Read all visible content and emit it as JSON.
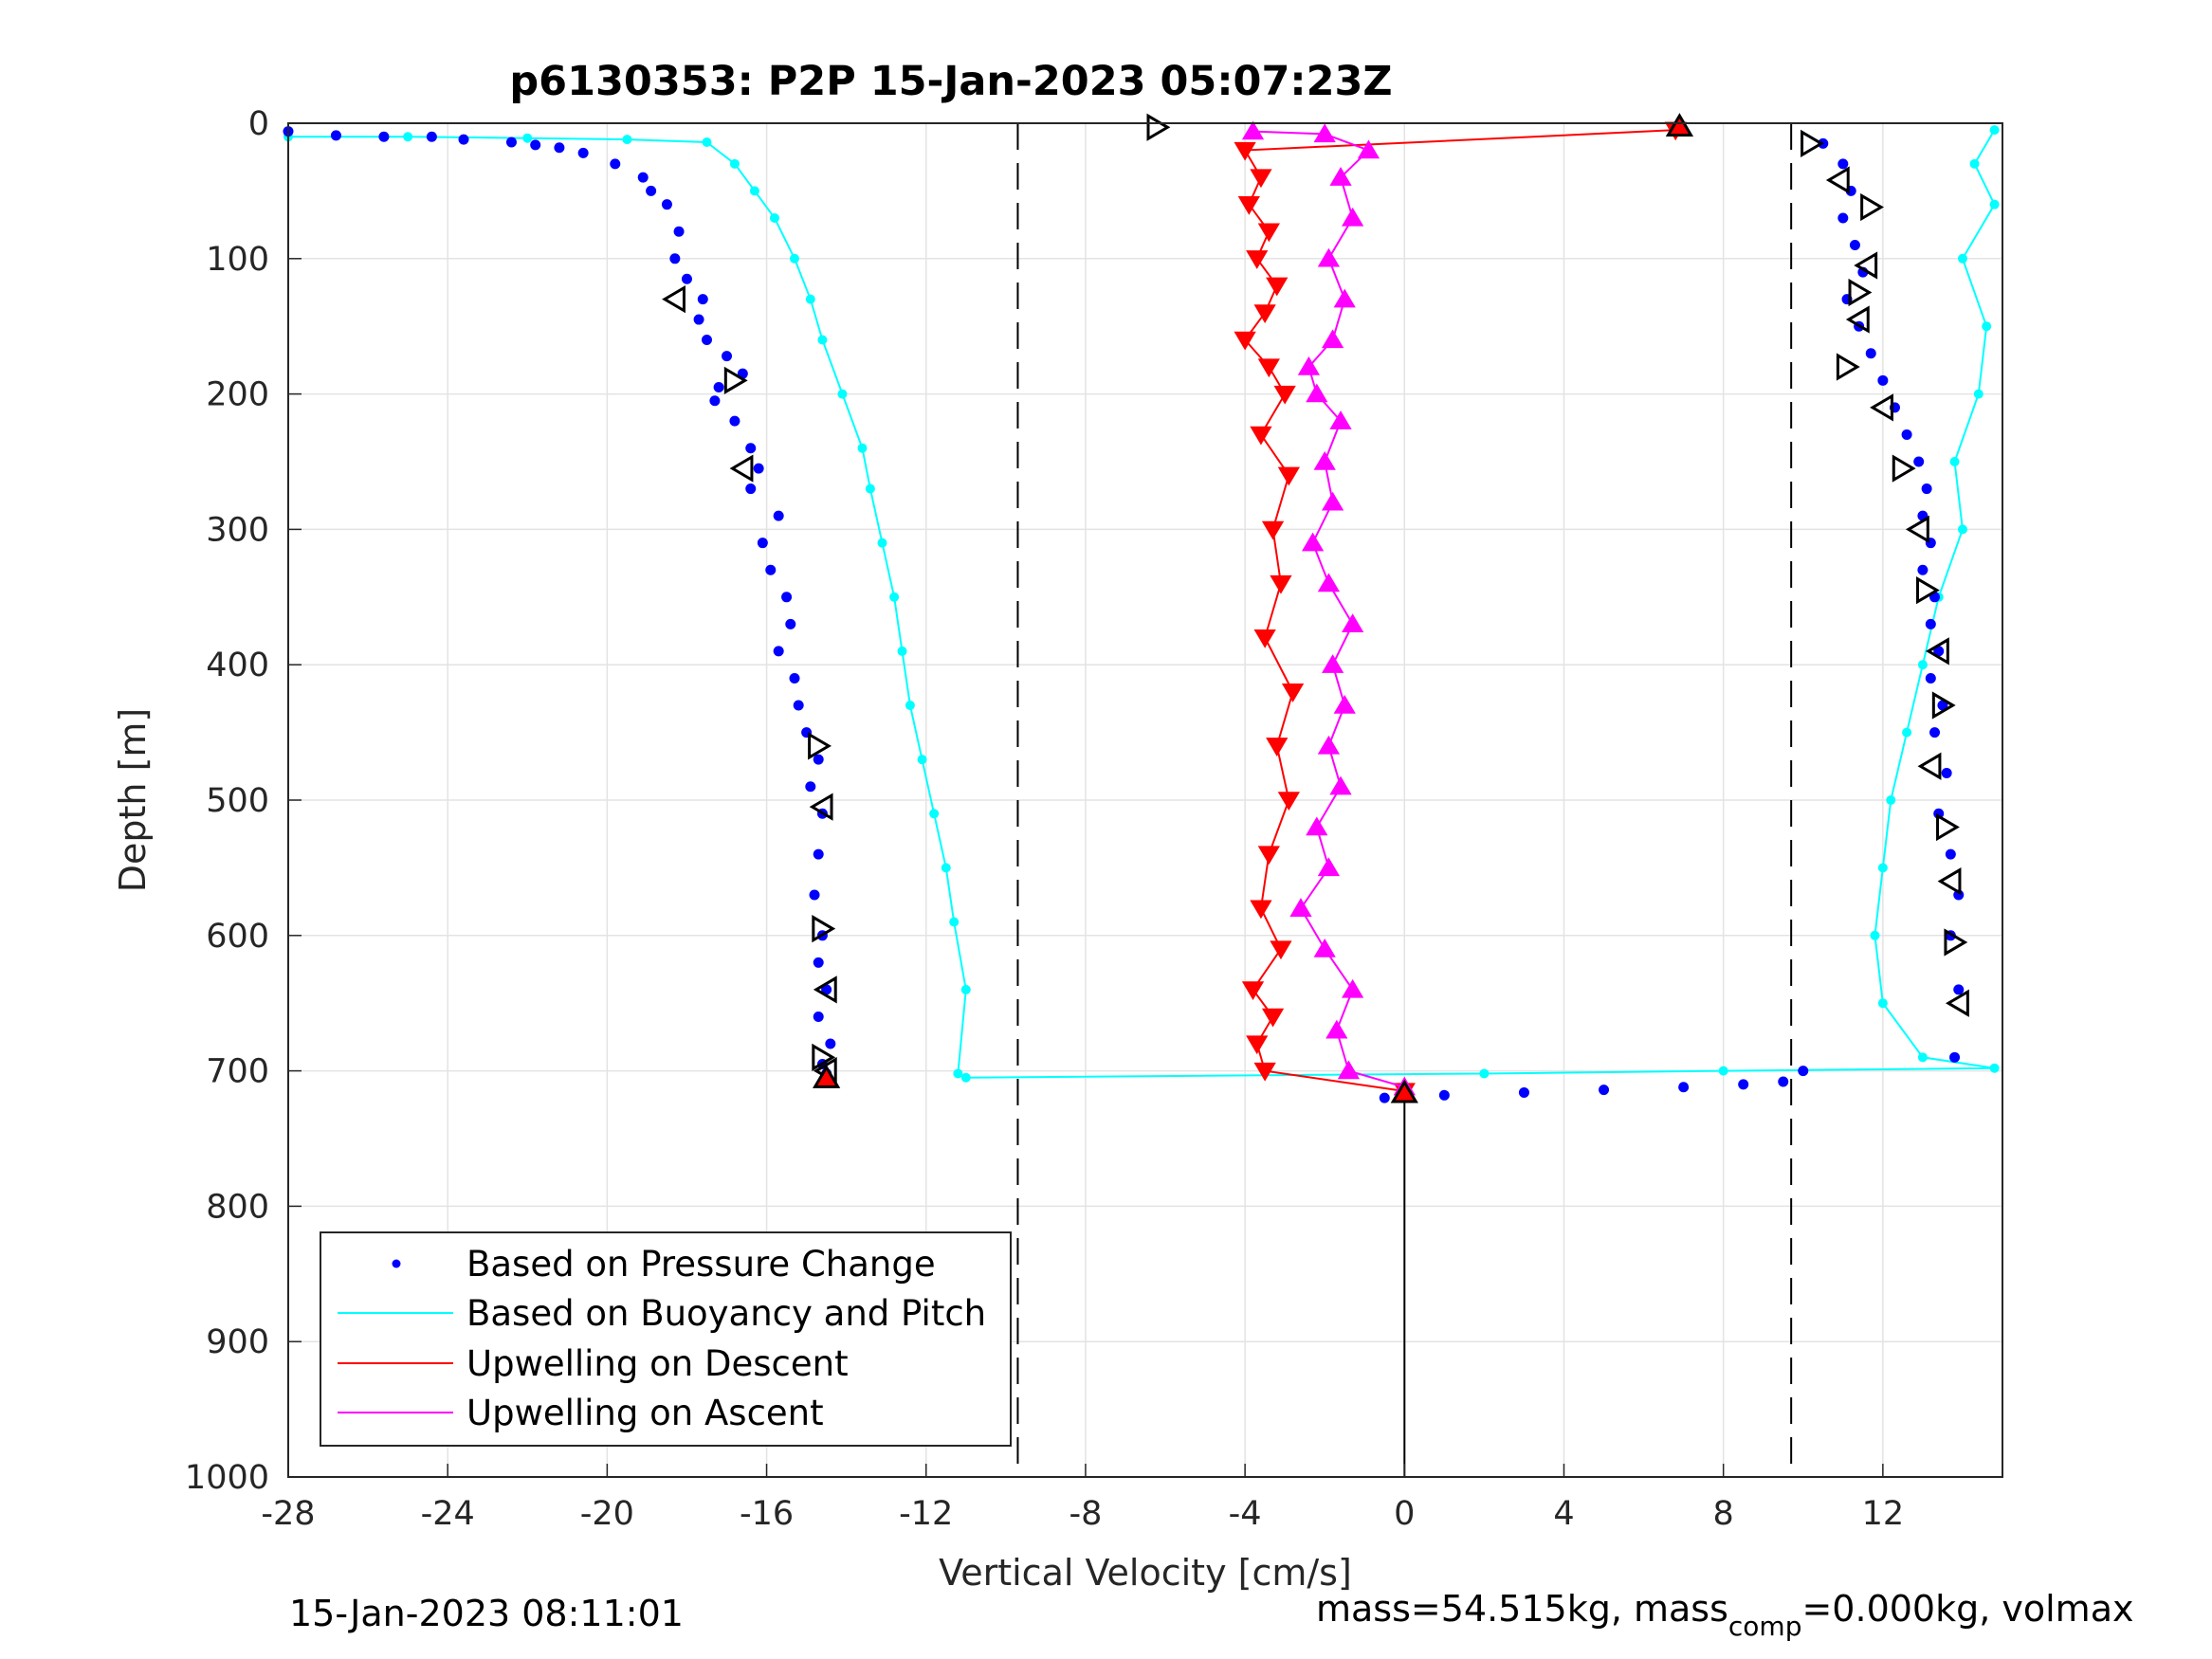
{
  "chart_data": {
    "type": "scatter",
    "title": "p6130353: P2P 15-Jan-2023 05:07:23Z",
    "xlabel": "Vertical Velocity [cm/s]",
    "ylabel": "Depth [m]",
    "xlim": [
      -28,
      15
    ],
    "ylim": [
      0,
      1000
    ],
    "y_reversed": true,
    "xticks": [
      -28,
      -24,
      -20,
      -16,
      -12,
      -8,
      -4,
      0,
      4,
      8,
      12
    ],
    "yticks": [
      0,
      100,
      200,
      300,
      400,
      500,
      600,
      700,
      800,
      900,
      1000
    ],
    "grid": true,
    "legend_position": "bottom-left",
    "reference_lines": {
      "dashed_x": [
        -9.7,
        9.7
      ],
      "solid_x_from_depth": {
        "x": 0,
        "y_from": 712,
        "y_to": 1000
      }
    },
    "series": [
      {
        "name": "Based on Pressure Change",
        "color": "#0000ff",
        "style": "dots",
        "x": [
          -28.0,
          -26.8,
          -25.6,
          -24.4,
          -23.6,
          -22.4,
          -21.8,
          -21.2,
          -20.6,
          -19.8,
          -19.1,
          -18.9,
          -18.5,
          -18.2,
          -18.3,
          -18.0,
          -17.6,
          -17.7,
          -17.5,
          -17.0,
          -16.6,
          -17.2,
          -17.3,
          -16.8,
          -16.4,
          -16.2,
          -16.4,
          -15.7,
          -16.1,
          -15.9,
          -15.5,
          -15.4,
          -15.7,
          -15.3,
          -15.2,
          -15.0,
          -14.7,
          -14.9,
          -14.6,
          -14.7,
          -14.8,
          -14.6,
          -14.7,
          -14.5,
          -14.7,
          -14.4,
          -14.6,
          -14.5
        ],
        "y": [
          6,
          9,
          10,
          10,
          12,
          14,
          16,
          18,
          22,
          30,
          40,
          50,
          60,
          80,
          100,
          115,
          130,
          145,
          160,
          172,
          185,
          195,
          205,
          220,
          240,
          255,
          270,
          290,
          310,
          330,
          350,
          370,
          390,
          410,
          430,
          450,
          470,
          490,
          510,
          540,
          570,
          600,
          620,
          640,
          660,
          680,
          695,
          702
        ],
        "x2": [
          -0.5,
          1.0,
          3.0,
          5.0,
          7.0,
          8.5,
          9.5,
          10.0,
          10.5,
          11.0,
          11.2,
          11.0,
          11.3,
          11.5,
          11.1,
          11.4,
          11.7,
          12.0,
          12.3,
          12.6,
          12.9,
          13.1,
          13.0,
          13.2,
          13.0,
          13.3,
          13.2,
          13.4,
          13.2,
          13.5,
          13.3,
          13.6,
          13.4,
          13.7,
          13.9,
          13.7,
          13.9,
          13.8
        ],
        "y2": [
          720,
          718,
          716,
          714,
          712,
          710,
          708,
          700,
          15,
          30,
          50,
          70,
          90,
          110,
          130,
          150,
          170,
          190,
          210,
          230,
          250,
          270,
          290,
          310,
          330,
          350,
          370,
          390,
          410,
          430,
          450,
          480,
          510,
          540,
          570,
          600,
          640,
          690
        ]
      },
      {
        "name": "Based on Buoyancy and Pitch",
        "color": "#00ffff",
        "style": "line+dots",
        "x": [
          -28.0,
          -25.0,
          -22.0,
          -19.5,
          -17.5,
          -16.8,
          -16.3,
          -15.8,
          -15.3,
          -14.9,
          -14.6,
          -14.1,
          -13.6,
          -13.4,
          -13.1,
          -12.8,
          -12.6,
          -12.4,
          -12.1,
          -11.8,
          -11.5,
          -11.3,
          -11.0,
          -11.2
        ],
        "y": [
          10,
          10,
          11,
          12,
          14,
          30,
          50,
          70,
          100,
          130,
          160,
          200,
          240,
          270,
          310,
          350,
          390,
          430,
          470,
          510,
          550,
          590,
          640,
          702
        ],
        "x2": [
          -11.0,
          2.0,
          8.0,
          14.8,
          13.0,
          12.0,
          11.8,
          12.0,
          12.2,
          12.6,
          13.0,
          13.4,
          14.0,
          13.8,
          14.4,
          14.6,
          14.0,
          14.8,
          14.3,
          14.8
        ],
        "y2": [
          705,
          702,
          700,
          698,
          690,
          650,
          600,
          550,
          500,
          450,
          400,
          350,
          300,
          250,
          200,
          150,
          100,
          60,
          30,
          5
        ]
      },
      {
        "name": "Upwelling on Descent",
        "color": "#ff0000",
        "style": "line+down-triangles",
        "x": [
          6.8,
          -4.0,
          -3.6,
          -3.9,
          -3.4,
          -3.7,
          -3.2,
          -3.5,
          -4.0,
          -3.4,
          -3.0,
          -3.6,
          -2.9,
          -3.3,
          -3.1,
          -3.5,
          -2.8,
          -3.2,
          -2.9,
          -3.4,
          -3.6,
          -3.1,
          -3.8,
          -3.3,
          -3.7,
          -3.5,
          0
        ],
        "y": [
          5,
          20,
          40,
          60,
          80,
          100,
          120,
          140,
          160,
          180,
          200,
          230,
          260,
          300,
          340,
          380,
          420,
          460,
          500,
          540,
          580,
          610,
          640,
          660,
          680,
          700,
          715
        ]
      },
      {
        "name": "Upwelling on Ascent",
        "color": "#ff00ff",
        "style": "line+up-triangles",
        "x": [
          0.0,
          -1.4,
          -1.7,
          -1.3,
          -2.0,
          -2.6,
          -1.9,
          -2.2,
          -1.6,
          -1.9,
          -1.5,
          -1.8,
          -1.3,
          -1.9,
          -2.3,
          -1.8,
          -2.0,
          -1.6,
          -2.2,
          -2.4,
          -1.8,
          -1.5,
          -1.9,
          -1.3,
          -1.6,
          -0.9,
          -2.0,
          -3.8
        ],
        "y": [
          712,
          700,
          670,
          640,
          610,
          580,
          550,
          520,
          490,
          460,
          430,
          400,
          370,
          340,
          310,
          280,
          250,
          220,
          200,
          180,
          160,
          130,
          100,
          70,
          40,
          20,
          8,
          6
        ]
      }
    ],
    "markers": {
      "descent_open_triangles": [
        {
          "x": -18.3,
          "y": 130,
          "dir": "left"
        },
        {
          "x": -16.8,
          "y": 190,
          "dir": "right"
        },
        {
          "x": -16.6,
          "y": 255,
          "dir": "left"
        },
        {
          "x": -14.7,
          "y": 460,
          "dir": "right"
        },
        {
          "x": -14.6,
          "y": 505,
          "dir": "left"
        },
        {
          "x": -14.6,
          "y": 595,
          "dir": "right"
        },
        {
          "x": -14.5,
          "y": 640,
          "dir": "left"
        },
        {
          "x": -14.6,
          "y": 690,
          "dir": "right"
        },
        {
          "x": -14.5,
          "y": 700,
          "dir": "left"
        },
        {
          "x": -6.2,
          "y": 3,
          "dir": "right"
        }
      ],
      "ascent_open_triangles": [
        {
          "x": 10.2,
          "y": 15,
          "dir": "right"
        },
        {
          "x": 10.9,
          "y": 42,
          "dir": "left"
        },
        {
          "x": 11.7,
          "y": 62,
          "dir": "right"
        },
        {
          "x": 11.6,
          "y": 105,
          "dir": "left"
        },
        {
          "x": 11.4,
          "y": 125,
          "dir": "right"
        },
        {
          "x": 11.4,
          "y": 145,
          "dir": "left"
        },
        {
          "x": 11.1,
          "y": 180,
          "dir": "right"
        },
        {
          "x": 12.0,
          "y": 210,
          "dir": "left"
        },
        {
          "x": 12.5,
          "y": 255,
          "dir": "right"
        },
        {
          "x": 12.9,
          "y": 300,
          "dir": "left"
        },
        {
          "x": 13.1,
          "y": 345,
          "dir": "right"
        },
        {
          "x": 13.4,
          "y": 390,
          "dir": "left"
        },
        {
          "x": 13.5,
          "y": 430,
          "dir": "right"
        },
        {
          "x": 13.2,
          "y": 475,
          "dir": "left"
        },
        {
          "x": 13.6,
          "y": 520,
          "dir": "right"
        },
        {
          "x": 13.7,
          "y": 560,
          "dir": "left"
        },
        {
          "x": 13.8,
          "y": 605,
          "dir": "right"
        },
        {
          "x": 13.9,
          "y": 650,
          "dir": "left"
        }
      ],
      "red_filled_triangles": [
        {
          "x": -14.5,
          "y": 705
        },
        {
          "x": 6.9,
          "y": 2
        },
        {
          "x": 0.0,
          "y": 716
        }
      ]
    }
  },
  "footer": {
    "timestamp": "15-Jan-2023 08:11:01",
    "mass_text_part1": "mass=54.515kg, mass",
    "mass_sub": "comp",
    "mass_text_part2": "=0.000kg, volmax"
  }
}
